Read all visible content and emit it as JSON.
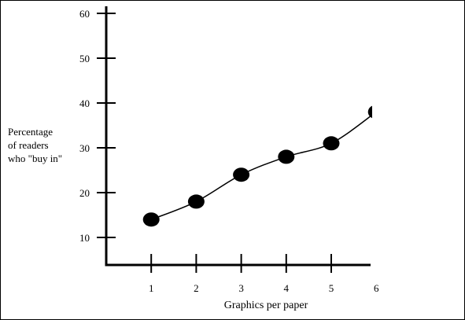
{
  "chart_data": {
    "type": "line",
    "title": "",
    "xlabel": "Graphics per paper",
    "ylabel_lines": [
      "Percentage",
      "of readers",
      "who \"buy in\""
    ],
    "x_ticks": [
      "1",
      "2",
      "3",
      "4",
      "5",
      "6"
    ],
    "y_ticks": [
      "10",
      "20",
      "30",
      "40",
      "50",
      "60"
    ],
    "xlim": [
      0,
      6
    ],
    "ylim": [
      4,
      62
    ],
    "grid": false,
    "series": [
      {
        "x": [
          1,
          2,
          3,
          4,
          5,
          6
        ],
        "values": [
          14,
          18,
          24,
          28,
          31,
          38
        ]
      }
    ],
    "colors": {
      "marks": "#000000",
      "border": "#000000"
    }
  }
}
